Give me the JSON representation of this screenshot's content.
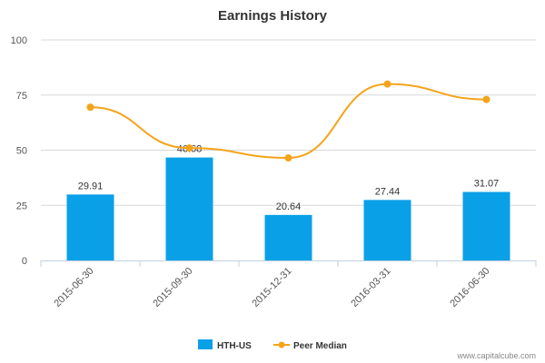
{
  "chart_data": {
    "type": "bar",
    "title": "Earnings History",
    "categories": [
      "2015-06-30",
      "2015-09-30",
      "2015-12-31",
      "2016-03-31",
      "2016-06-30"
    ],
    "series": [
      {
        "name": "HTH-US",
        "kind": "bar",
        "color": "#0aa0e8",
        "values": [
          29.91,
          46.68,
          20.64,
          27.44,
          31.07
        ],
        "labels": [
          "29.91",
          "46.68",
          "20.64",
          "27.44",
          "31.07"
        ]
      },
      {
        "name": "Peer Median",
        "kind": "line",
        "color": "#f5a31a",
        "values": [
          69.5,
          51,
          46.5,
          80,
          73
        ]
      }
    ],
    "ylim": [
      0,
      100
    ],
    "yticks": [
      0,
      25,
      50,
      75,
      100
    ],
    "xlabel": "",
    "ylabel": "",
    "legend_position": "bottom-center"
  },
  "credit": "www.capitalcube.com"
}
